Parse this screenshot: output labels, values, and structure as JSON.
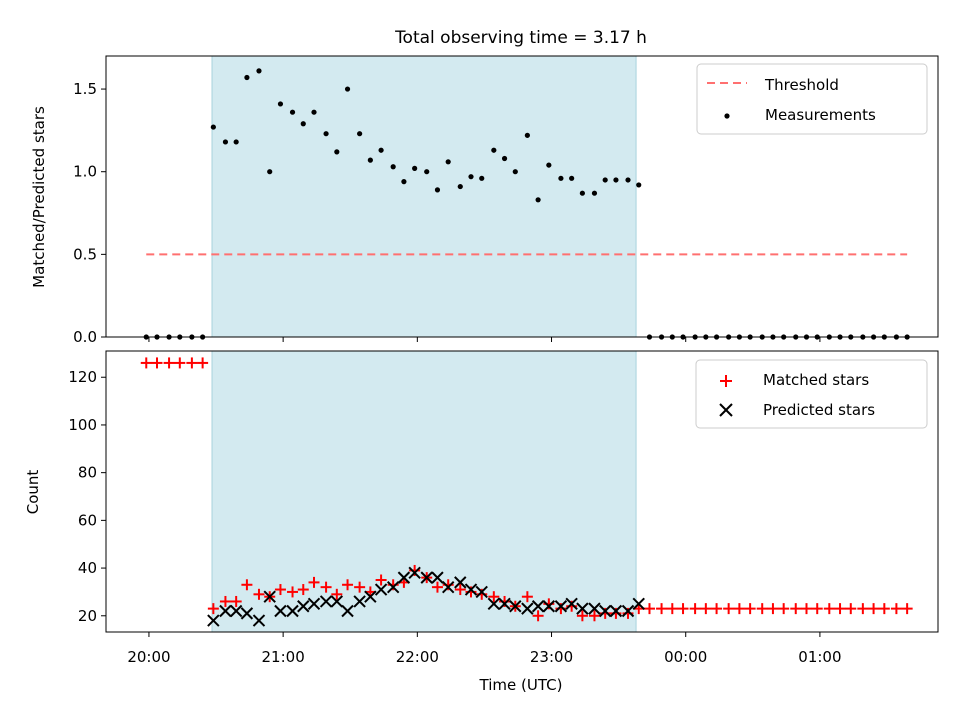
{
  "figure": {
    "title": "Total observing time = 3.17 h",
    "xlabel": "Time (UTC)",
    "x_ticks": [
      "20:00",
      "21:00",
      "22:00",
      "23:00",
      "00:00",
      "01:00"
    ],
    "x_tick_values_hours": [
      20,
      21,
      22,
      23,
      24,
      25
    ],
    "observing_window_hours": [
      20.47,
      23.63
    ],
    "observing_window_color": "#d3eaf0"
  },
  "chart_data": [
    {
      "type": "scatter",
      "panel": "top",
      "ylabel": "Matched/Predicted stars",
      "ylim": [
        0,
        1.7
      ],
      "yticks": [
        0.0,
        0.5,
        1.0,
        1.5
      ],
      "ytick_labels": [
        "0.0",
        "0.5",
        "1.0",
        "1.5"
      ],
      "legend": {
        "placement": "top-right",
        "entries": [
          "Threshold",
          "Measurements"
        ]
      },
      "threshold": {
        "name": "Threshold",
        "value": 0.5,
        "x_start": 19.98,
        "x_end": 25.65,
        "color": "#ff7070"
      },
      "series": [
        {
          "name": "Measurements",
          "color": "#000000",
          "points": [
            [
              19.98,
              0.0
            ],
            [
              20.06,
              0.0
            ],
            [
              20.15,
              0.0
            ],
            [
              20.23,
              0.0
            ],
            [
              20.32,
              0.0
            ],
            [
              20.4,
              0.0
            ],
            [
              20.48,
              1.27
            ],
            [
              20.57,
              1.18
            ],
            [
              20.65,
              1.18
            ],
            [
              20.73,
              1.57
            ],
            [
              20.82,
              1.61
            ],
            [
              20.9,
              1.0
            ],
            [
              20.98,
              1.41
            ],
            [
              21.07,
              1.36
            ],
            [
              21.15,
              1.29
            ],
            [
              21.23,
              1.36
            ],
            [
              21.32,
              1.23
            ],
            [
              21.4,
              1.12
            ],
            [
              21.48,
              1.5
            ],
            [
              21.57,
              1.23
            ],
            [
              21.65,
              1.07
            ],
            [
              21.73,
              1.13
            ],
            [
              21.82,
              1.03
            ],
            [
              21.9,
              0.94
            ],
            [
              21.98,
              1.02
            ],
            [
              22.07,
              1.0
            ],
            [
              22.15,
              0.89
            ],
            [
              22.23,
              1.06
            ],
            [
              22.32,
              0.91
            ],
            [
              22.4,
              0.97
            ],
            [
              22.48,
              0.96
            ],
            [
              22.57,
              1.13
            ],
            [
              22.65,
              1.08
            ],
            [
              22.73,
              1.0
            ],
            [
              22.82,
              1.22
            ],
            [
              22.9,
              0.83
            ],
            [
              22.98,
              1.04
            ],
            [
              23.07,
              0.96
            ],
            [
              23.15,
              0.96
            ],
            [
              23.23,
              0.87
            ],
            [
              23.32,
              0.87
            ],
            [
              23.4,
              0.95
            ],
            [
              23.48,
              0.95
            ],
            [
              23.57,
              0.95
            ],
            [
              23.65,
              0.92
            ],
            [
              23.73,
              0.0
            ],
            [
              23.82,
              0.0
            ],
            [
              23.9,
              0.0
            ],
            [
              23.98,
              0.0
            ],
            [
              24.07,
              0.0
            ],
            [
              24.15,
              0.0
            ],
            [
              24.23,
              0.0
            ],
            [
              24.32,
              0.0
            ],
            [
              24.4,
              0.0
            ],
            [
              24.48,
              0.0
            ],
            [
              24.57,
              0.0
            ],
            [
              24.65,
              0.0
            ],
            [
              24.73,
              0.0
            ],
            [
              24.82,
              0.0
            ],
            [
              24.9,
              0.0
            ],
            [
              24.98,
              0.0
            ],
            [
              25.07,
              0.0
            ],
            [
              25.15,
              0.0
            ],
            [
              25.23,
              0.0
            ],
            [
              25.32,
              0.0
            ],
            [
              25.4,
              0.0
            ],
            [
              25.48,
              0.0
            ],
            [
              25.57,
              0.0
            ],
            [
              25.65,
              0.0
            ]
          ]
        }
      ]
    },
    {
      "type": "scatter",
      "panel": "bottom",
      "ylabel": "Count",
      "ylim": [
        13.2,
        131
      ],
      "yticks": [
        20,
        40,
        60,
        80,
        100,
        120
      ],
      "ytick_labels": [
        "20",
        "40",
        "60",
        "80",
        "100",
        "120"
      ],
      "legend": {
        "placement": "top-right",
        "entries": [
          "Matched stars",
          "Predicted stars"
        ]
      },
      "series": [
        {
          "name": "Matched stars",
          "marker": "plus",
          "color": "#ff0000",
          "points": [
            [
              19.98,
              126
            ],
            [
              20.06,
              126
            ],
            [
              20.15,
              126
            ],
            [
              20.23,
              126
            ],
            [
              20.32,
              126
            ],
            [
              20.4,
              126
            ],
            [
              20.48,
              23
            ],
            [
              20.57,
              26
            ],
            [
              20.65,
              26
            ],
            [
              20.73,
              33
            ],
            [
              20.82,
              29
            ],
            [
              20.9,
              28
            ],
            [
              20.98,
              31
            ],
            [
              21.07,
              30
            ],
            [
              21.15,
              31
            ],
            [
              21.23,
              34
            ],
            [
              21.32,
              32
            ],
            [
              21.4,
              29
            ],
            [
              21.48,
              33
            ],
            [
              21.57,
              32
            ],
            [
              21.65,
              30
            ],
            [
              21.73,
              35
            ],
            [
              21.82,
              33
            ],
            [
              21.9,
              34
            ],
            [
              21.98,
              39
            ],
            [
              22.07,
              36
            ],
            [
              22.15,
              32
            ],
            [
              22.23,
              33
            ],
            [
              22.32,
              31
            ],
            [
              22.4,
              30
            ],
            [
              22.48,
              29
            ],
            [
              22.57,
              28
            ],
            [
              22.65,
              26
            ],
            [
              22.73,
              24
            ],
            [
              22.82,
              28
            ],
            [
              22.9,
              20
            ],
            [
              22.98,
              25
            ],
            [
              23.07,
              23
            ],
            [
              23.15,
              24
            ],
            [
              23.23,
              20
            ],
            [
              23.32,
              20
            ],
            [
              23.4,
              21
            ],
            [
              23.48,
              21
            ],
            [
              23.57,
              21
            ],
            [
              23.65,
              23
            ],
            [
              23.73,
              23
            ],
            [
              23.82,
              23
            ],
            [
              23.9,
              23
            ],
            [
              23.98,
              23
            ],
            [
              24.07,
              23
            ],
            [
              24.15,
              23
            ],
            [
              24.23,
              23
            ],
            [
              24.32,
              23
            ],
            [
              24.4,
              23
            ],
            [
              24.48,
              23
            ],
            [
              24.57,
              23
            ],
            [
              24.65,
              23
            ],
            [
              24.73,
              23
            ],
            [
              24.82,
              23
            ],
            [
              24.9,
              23
            ],
            [
              24.98,
              23
            ],
            [
              25.07,
              23
            ],
            [
              25.15,
              23
            ],
            [
              25.23,
              23
            ],
            [
              25.32,
              23
            ],
            [
              25.4,
              23
            ],
            [
              25.48,
              23
            ],
            [
              25.57,
              23
            ],
            [
              25.65,
              23
            ]
          ]
        },
        {
          "name": "Predicted stars",
          "marker": "x",
          "color": "#000000",
          "points": [
            [
              20.48,
              18
            ],
            [
              20.57,
              22
            ],
            [
              20.65,
              22
            ],
            [
              20.73,
              21
            ],
            [
              20.82,
              18
            ],
            [
              20.9,
              28
            ],
            [
              20.98,
              22
            ],
            [
              21.07,
              22
            ],
            [
              21.15,
              24
            ],
            [
              21.23,
              25
            ],
            [
              21.32,
              26
            ],
            [
              21.4,
              26
            ],
            [
              21.48,
              22
            ],
            [
              21.57,
              26
            ],
            [
              21.65,
              28
            ],
            [
              21.73,
              31
            ],
            [
              21.82,
              32
            ],
            [
              21.9,
              36
            ],
            [
              21.98,
              38
            ],
            [
              22.07,
              36
            ],
            [
              22.15,
              36
            ],
            [
              22.23,
              32
            ],
            [
              22.32,
              34
            ],
            [
              22.4,
              31
            ],
            [
              22.48,
              30
            ],
            [
              22.57,
              25
            ],
            [
              22.65,
              25
            ],
            [
              22.73,
              24
            ],
            [
              22.82,
              23
            ],
            [
              22.9,
              24
            ],
            [
              22.98,
              24
            ],
            [
              23.07,
              24
            ],
            [
              23.15,
              25
            ],
            [
              23.23,
              23
            ],
            [
              23.32,
              23
            ],
            [
              23.4,
              22
            ],
            [
              23.48,
              22
            ],
            [
              23.57,
              22
            ],
            [
              23.65,
              25
            ]
          ]
        }
      ]
    }
  ]
}
